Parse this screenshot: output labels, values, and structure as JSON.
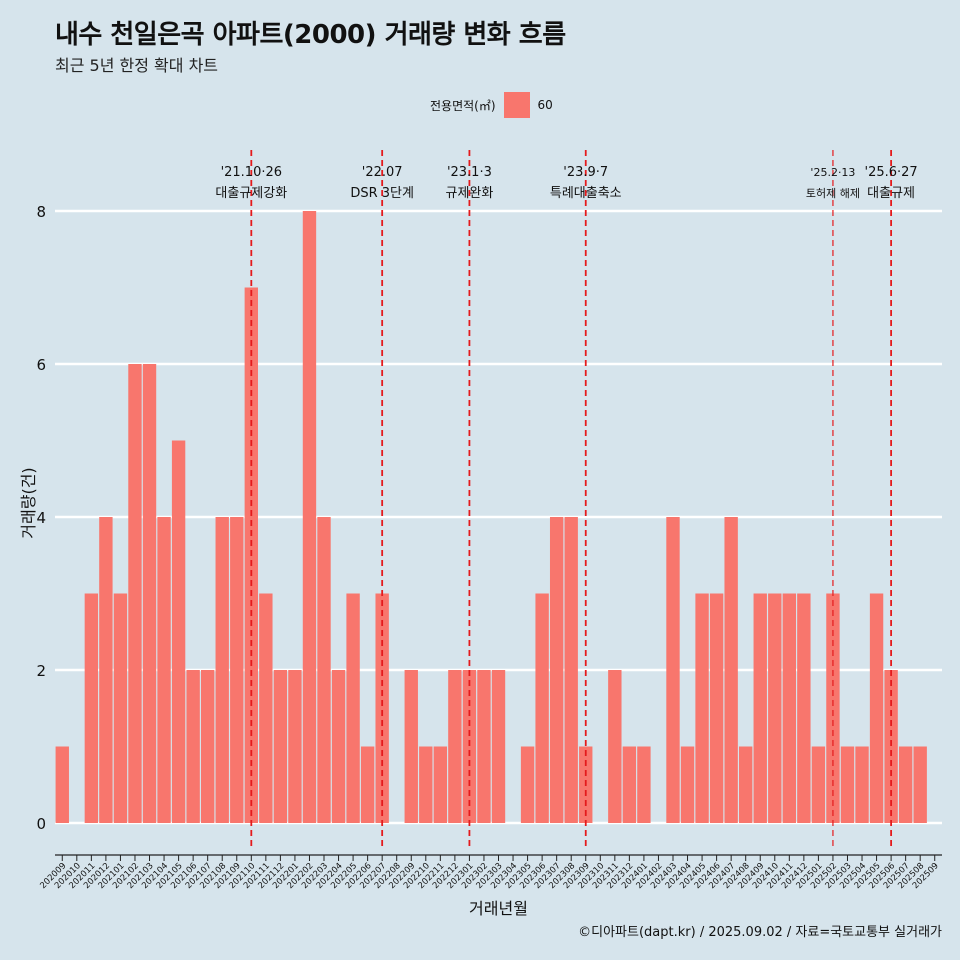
{
  "chart_title": "내수 천일은곡 아파트(2000) 거래량 변화 흐름",
  "chart_subtitle": "최근 5년 한정 확대 차트",
  "legend": {
    "title": "전용면적(㎡)",
    "items": [
      {
        "label": "60",
        "color": "#f8766d"
      }
    ]
  },
  "caption": "©디아파트(dapt.kr) / 2025.09.02 / 자료=국토교통부 실거래가",
  "colors": {
    "bar": "#f8766d",
    "event_line": "#e41a1c",
    "background": "#d6e4ec",
    "grid": "#ffffff"
  },
  "chart_data": {
    "type": "bar",
    "title": "내수 천일은곡 아파트(2000) 거래량 변화 흐름",
    "subtitle": "최근 5년 한정 확대 차트",
    "xlabel": "거래년월",
    "ylabel": "거래량(건)",
    "ylim": [
      0,
      8
    ],
    "yticks": [
      0,
      2,
      4,
      6,
      8
    ],
    "grid": true,
    "legend_position": "top",
    "series": [
      {
        "name": "60",
        "color": "#f8766d"
      }
    ],
    "categories": [
      "202009",
      "202010",
      "202011",
      "202012",
      "202101",
      "202102",
      "202103",
      "202104",
      "202105",
      "202106",
      "202107",
      "202108",
      "202109",
      "202110",
      "202111",
      "202112",
      "202201",
      "202202",
      "202203",
      "202204",
      "202205",
      "202206",
      "202207",
      "202208",
      "202209",
      "202210",
      "202211",
      "202212",
      "202301",
      "202302",
      "202303",
      "202304",
      "202305",
      "202306",
      "202307",
      "202308",
      "202309",
      "202310",
      "202311",
      "202312",
      "202401",
      "202402",
      "202403",
      "202404",
      "202405",
      "202406",
      "202407",
      "202408",
      "202409",
      "202410",
      "202411",
      "202412",
      "202501",
      "202502",
      "202503",
      "202504",
      "202505",
      "202506",
      "202507",
      "202508",
      "202509"
    ],
    "values": [
      1,
      0,
      3,
      4,
      3,
      6,
      6,
      4,
      5,
      2,
      2,
      4,
      4,
      7,
      3,
      2,
      2,
      8,
      4,
      2,
      3,
      1,
      3,
      0,
      2,
      1,
      1,
      2,
      2,
      2,
      2,
      0,
      1,
      3,
      4,
      4,
      1,
      0,
      2,
      1,
      1,
      0,
      4,
      1,
      3,
      3,
      4,
      1,
      3,
      3,
      3,
      3,
      1,
      3,
      1,
      1,
      3,
      2,
      1,
      1,
      0
    ],
    "events": [
      {
        "month": "202110",
        "date": "'21.10·26",
        "label": "대출규제강화"
      },
      {
        "month": "202207",
        "date": "'22.07",
        "label": "DSR 3단계"
      },
      {
        "month": "202301",
        "date": "'23.1·3",
        "label": "규제완화"
      },
      {
        "month": "202309",
        "date": "'23.9·7",
        "label": "특례대출축소"
      },
      {
        "month": "202502",
        "date": "'25.2·13",
        "label": "토허제 해제"
      },
      {
        "month": "202506",
        "date": "'25.6·27",
        "label": "대출규제"
      }
    ]
  }
}
